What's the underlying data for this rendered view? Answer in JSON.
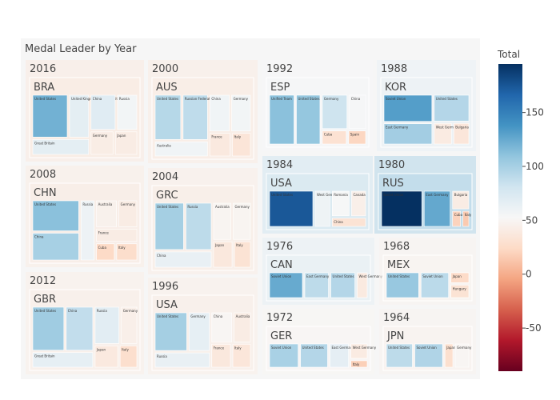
{
  "chart_data": {
    "type": "treemap",
    "title": "Medal Leader by Year",
    "colorbar": {
      "title": "Total",
      "range": [
        -90,
        195
      ],
      "ticks": [
        150,
        100,
        50,
        0,
        -50
      ],
      "colorscale": [
        [
          0.0,
          "#67001f"
        ],
        [
          0.1,
          "#b2182b"
        ],
        [
          0.2,
          "#d6604d"
        ],
        [
          0.3,
          "#f4a582"
        ],
        [
          0.4,
          "#fddbc7"
        ],
        [
          0.5,
          "#f7f7f7"
        ],
        [
          0.6,
          "#d1e5f0"
        ],
        [
          0.7,
          "#92c5de"
        ],
        [
          0.8,
          "#4393c3"
        ],
        [
          0.9,
          "#2166ac"
        ],
        [
          1.0,
          "#053061"
        ]
      ]
    },
    "years": [
      {
        "year": "2016",
        "host": "BRA",
        "total": 39,
        "countries": [
          {
            "name": "United States",
            "total": 121
          },
          {
            "name": "United Kingdom of Great Britain",
            "total": 67
          },
          {
            "name": "Great Britain",
            "total": 67
          },
          {
            "name": "China",
            "total": 70
          },
          {
            "name": "Russia",
            "total": 56
          },
          {
            "name": "Germany",
            "total": 42
          },
          {
            "name": "Japan",
            "total": 41
          }
        ]
      },
      {
        "year": "2000",
        "host": "AUS",
        "total": 40,
        "countries": [
          {
            "name": "United States",
            "total": 93
          },
          {
            "name": "Russian Federation",
            "total": 89
          },
          {
            "name": "Australia",
            "total": 58
          },
          {
            "name": "China",
            "total": 58
          },
          {
            "name": "Germany",
            "total": 56
          },
          {
            "name": "France",
            "total": 38
          },
          {
            "name": "Italy",
            "total": 34
          }
        ]
      },
      {
        "year": "2008",
        "host": "CHN",
        "total": 41,
        "countries": [
          {
            "name": "United States",
            "total": 112
          },
          {
            "name": "China",
            "total": 100
          },
          {
            "name": "Russia",
            "total": 60
          },
          {
            "name": "Australia",
            "total": 46
          },
          {
            "name": "Germany",
            "total": 41
          },
          {
            "name": "France",
            "total": 41
          },
          {
            "name": "Cuba",
            "total": 24
          },
          {
            "name": "Italy",
            "total": 27
          }
        ]
      },
      {
        "year": "2004",
        "host": "GRC",
        "total": 42,
        "countries": [
          {
            "name": "United States",
            "total": 101
          },
          {
            "name": "Russia",
            "total": 90
          },
          {
            "name": "China",
            "total": 63
          },
          {
            "name": "Australia",
            "total": 49
          },
          {
            "name": "Germany",
            "total": 49
          },
          {
            "name": "Japan",
            "total": 37
          },
          {
            "name": "Italy",
            "total": 32
          }
        ]
      },
      {
        "year": "2012",
        "host": "GBR",
        "total": 43,
        "countries": [
          {
            "name": "United States",
            "total": 103
          },
          {
            "name": "China",
            "total": 88
          },
          {
            "name": "Great Britain",
            "total": 65
          },
          {
            "name": "Russia",
            "total": 68
          },
          {
            "name": "Germany",
            "total": 44
          },
          {
            "name": "Japan",
            "total": 38
          },
          {
            "name": "Italy",
            "total": 28
          }
        ]
      },
      {
        "year": "1996",
        "host": "USA",
        "total": 43,
        "countries": [
          {
            "name": "United States",
            "total": 101
          },
          {
            "name": "Germany",
            "total": 65
          },
          {
            "name": "Russia",
            "total": 63
          },
          {
            "name": "China",
            "total": 50
          },
          {
            "name": "Australia",
            "total": 41
          },
          {
            "name": "France",
            "total": 37
          },
          {
            "name": "Italy",
            "total": 35
          }
        ]
      },
      {
        "year": "1992",
        "host": "ESP",
        "total": 54,
        "countries": [
          {
            "name": "Unified Team",
            "total": 112
          },
          {
            "name": "United States",
            "total": 108
          },
          {
            "name": "Germany",
            "total": 82
          },
          {
            "name": "China",
            "total": 54
          },
          {
            "name": "Cuba",
            "total": 31
          },
          {
            "name": "Spain",
            "total": 22
          }
        ]
      },
      {
        "year": "1988",
        "host": "KOR",
        "total": 62,
        "countries": [
          {
            "name": "Soviet Union",
            "total": 132
          },
          {
            "name": "East Germany",
            "total": 102
          },
          {
            "name": "United States",
            "total": 94
          },
          {
            "name": "West Germany",
            "total": 40
          },
          {
            "name": "Bulgaria",
            "total": 35
          }
        ]
      },
      {
        "year": "1984",
        "host": "USA",
        "total": 80,
        "countries": [
          {
            "name": "United States",
            "total": 174
          },
          {
            "name": "West Germany",
            "total": 59
          },
          {
            "name": "Romania",
            "total": 53
          },
          {
            "name": "Canada",
            "total": 44
          },
          {
            "name": "China",
            "total": 32
          }
        ]
      },
      {
        "year": "1980",
        "host": "RUS",
        "total": 95,
        "countries": [
          {
            "name": "Soviet Union",
            "total": 195
          },
          {
            "name": "East Germany",
            "total": 126
          },
          {
            "name": "Bulgaria",
            "total": 41
          },
          {
            "name": "Cuba",
            "total": 20
          },
          {
            "name": "Italy",
            "total": 15
          }
        ]
      },
      {
        "year": "1976",
        "host": "CAN",
        "total": 65,
        "countries": [
          {
            "name": "Soviet Union",
            "total": 125
          },
          {
            "name": "East Germany",
            "total": 90
          },
          {
            "name": "United States",
            "total": 94
          },
          {
            "name": "West Germany",
            "total": 39
          }
        ]
      },
      {
        "year": "1968",
        "host": "MEX",
        "total": 48,
        "countries": [
          {
            "name": "United States",
            "total": 107
          },
          {
            "name": "Soviet Union",
            "total": 91
          },
          {
            "name": "Japan",
            "total": 25
          },
          {
            "name": "Hungary",
            "total": 32
          }
        ]
      },
      {
        "year": "1972",
        "host": "GER",
        "total": 50,
        "countries": [
          {
            "name": "Soviet Union",
            "total": 99
          },
          {
            "name": "United States",
            "total": 94
          },
          {
            "name": "East Germany",
            "total": 66
          },
          {
            "name": "West Germany",
            "total": 40
          },
          {
            "name": "Italy",
            "total": 18
          }
        ]
      },
      {
        "year": "1964",
        "host": "JPN",
        "total": 47,
        "countries": [
          {
            "name": "United States",
            "total": 90
          },
          {
            "name": "Soviet Union",
            "total": 96
          },
          {
            "name": "Japan",
            "total": 29
          },
          {
            "name": "Germany",
            "total": 50
          }
        ]
      }
    ]
  }
}
